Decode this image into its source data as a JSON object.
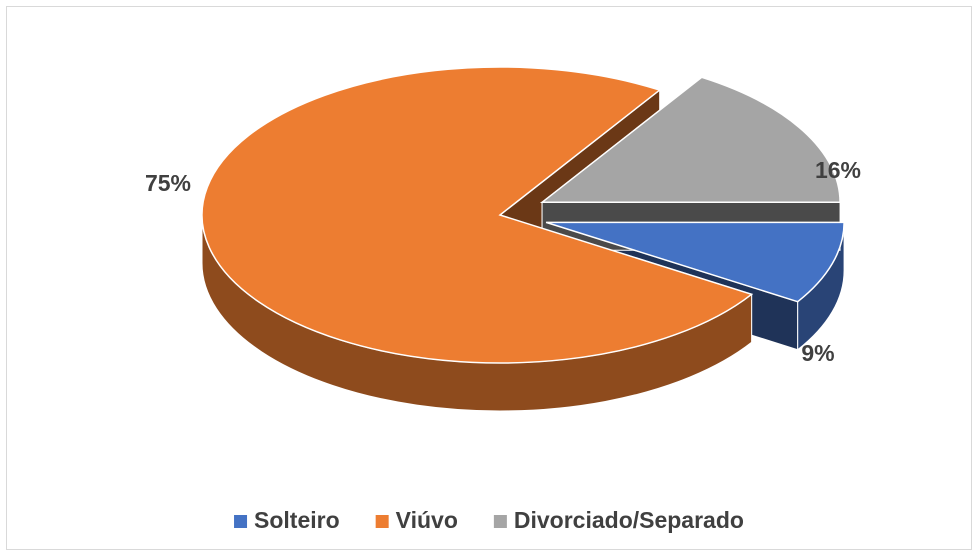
{
  "chart_data": {
    "type": "pie3d",
    "categories": [
      "Solteiro",
      "Viúvo",
      "Divorciado/Separado"
    ],
    "values": [
      9,
      75,
      16
    ],
    "value_labels": [
      "9%",
      "75%",
      "16%"
    ],
    "colors": [
      "#4472c4",
      "#ed7d31",
      "#a5a5a5"
    ],
    "legend": "bottom"
  }
}
